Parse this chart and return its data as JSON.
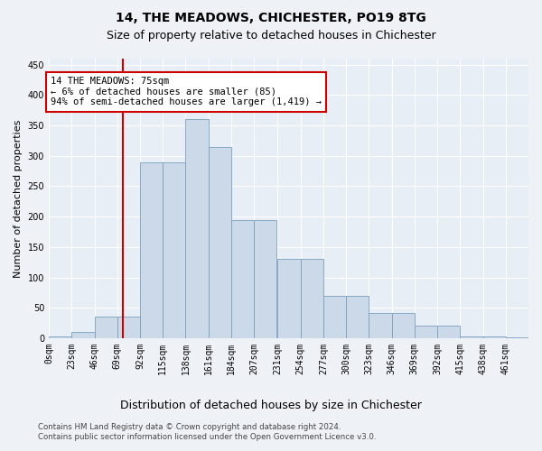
{
  "title": "14, THE MEADOWS, CHICHESTER, PO19 8TG",
  "subtitle": "Size of property relative to detached houses in Chichester",
  "xlabel": "Distribution of detached houses by size in Chichester",
  "ylabel": "Number of detached properties",
  "bar_color": "#ccd9e8",
  "bar_edge_color": "#7aa0c0",
  "bins": [
    0,
    23,
    46,
    69,
    92,
    115,
    138,
    161,
    184,
    207,
    231,
    254,
    277,
    300,
    323,
    346,
    369,
    392,
    415,
    438,
    461
  ],
  "counts": [
    3,
    10,
    35,
    35,
    290,
    290,
    360,
    315,
    195,
    195,
    130,
    130,
    70,
    70,
    42,
    42,
    20,
    20,
    3,
    3,
    1
  ],
  "tick_labels": [
    "0sqm",
    "23sqm",
    "46sqm",
    "69sqm",
    "92sqm",
    "115sqm",
    "138sqm",
    "161sqm",
    "184sqm",
    "207sqm",
    "231sqm",
    "254sqm",
    "277sqm",
    "300sqm",
    "323sqm",
    "346sqm",
    "369sqm",
    "392sqm",
    "415sqm",
    "438sqm",
    "461sqm"
  ],
  "property_size": 75,
  "red_line_color": "#cc0000",
  "annotation_text": "14 THE MEADOWS: 75sqm\n← 6% of detached houses are smaller (85)\n94% of semi-detached houses are larger (1,419) →",
  "annotation_box_color": "#ffffff",
  "annotation_box_edge": "#cc0000",
  "ylim": [
    0,
    460
  ],
  "yticks": [
    0,
    50,
    100,
    150,
    200,
    250,
    300,
    350,
    400,
    450
  ],
  "footnote1": "Contains HM Land Registry data © Crown copyright and database right 2024.",
  "footnote2": "Contains public sector information licensed under the Open Government Licence v3.0.",
  "bg_color": "#eef2f7",
  "plot_bg_color": "#e8eef5",
  "grid_color": "#ffffff",
  "title_fontsize": 10,
  "subtitle_fontsize": 9,
  "tick_fontsize": 7,
  "ylabel_fontsize": 8,
  "xlabel_fontsize": 9
}
